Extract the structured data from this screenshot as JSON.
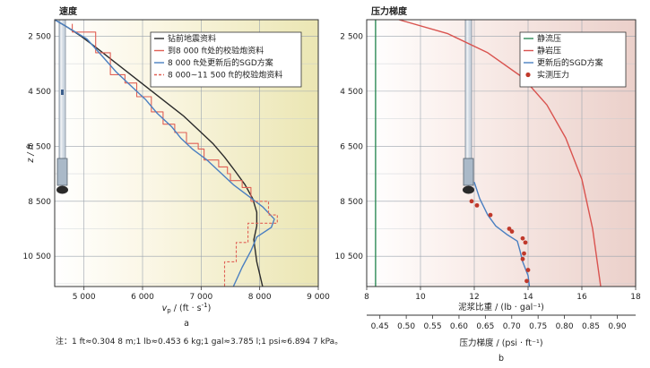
{
  "chart_data": [
    {
      "type": "line",
      "panel_label": "a",
      "title": "速度",
      "xlabel_html": "v_p / (ft · s⁻¹)",
      "xlabel_parts": [
        "v",
        "p",
        " / (ft · s",
        "-1",
        ")"
      ],
      "ylabel": "z / ft",
      "xlim": [
        4500,
        9000
      ],
      "ylim": [
        1900,
        11600
      ],
      "y_inverted": true,
      "xticks": [
        5000,
        6000,
        7000,
        8000,
        9000
      ],
      "xtick_labels": [
        "5 000",
        "6 000",
        "7 000",
        "8 000",
        "9 000"
      ],
      "yticks": [
        2500,
        4500,
        6500,
        8500,
        10500
      ],
      "ytick_labels": [
        "2 500",
        "4 500",
        "6 500",
        "8 500",
        "10 500"
      ],
      "grid": true,
      "legend_position": "top-right",
      "series": [
        {
          "name": "钻前地震资料",
          "color": "#2a2a2a",
          "style": "solid",
          "x": [
            4500,
            4700,
            4950,
            5200,
            5500,
            5800,
            6100,
            6400,
            6700,
            6950,
            7200,
            7400,
            7580,
            7750,
            7880,
            7950,
            7950,
            7900,
            7950,
            8050
          ],
          "y": [
            1900,
            2150,
            2500,
            2900,
            3400,
            3900,
            4400,
            4900,
            5400,
            5900,
            6400,
            6900,
            7400,
            7900,
            8400,
            8900,
            9400,
            9900,
            10700,
            11600
          ]
        },
        {
          "name": "到8 000 ft处的校验炮资料",
          "color": "#e06055",
          "style": "step",
          "x": [
            4800,
            4800,
            5200,
            5200,
            5450,
            5450,
            5700,
            5700,
            5900,
            5900,
            6150,
            6150,
            6350,
            6350,
            6550,
            6550,
            6750,
            6750,
            6950,
            6950,
            7050,
            7050,
            7300,
            7300,
            7450,
            7450,
            7500,
            7500,
            7700,
            7700,
            7850,
            7850
          ],
          "y": [
            2050,
            2350,
            2350,
            3100,
            3100,
            3900,
            3900,
            4200,
            4200,
            4700,
            4700,
            5250,
            5250,
            5700,
            5700,
            6000,
            6000,
            6400,
            6400,
            6600,
            6600,
            7000,
            7000,
            7250,
            7250,
            7500,
            7500,
            7750,
            7750,
            8000,
            8000,
            8500
          ]
        },
        {
          "name": "8 000 ft处更新后的SGD方案",
          "color": "#4a7fc1",
          "style": "solid",
          "x": [
            4500,
            4700,
            5050,
            5300,
            5550,
            5800,
            6050,
            6250,
            6500,
            6650,
            6850,
            7100,
            7350,
            7550,
            7800,
            8050,
            8250,
            8200,
            7950,
            7850,
            7700,
            7550
          ],
          "y": [
            1900,
            2150,
            2600,
            3200,
            3800,
            4300,
            4800,
            5300,
            5800,
            6200,
            6600,
            7000,
            7500,
            7900,
            8300,
            8700,
            9150,
            9450,
            9800,
            10300,
            10900,
            11600
          ]
        },
        {
          "name": "8 000~11 500 ft的校验炮资料",
          "color": "#e06055",
          "style": "dashed-step",
          "x": [
            7850,
            8150,
            8150,
            8300,
            8300,
            7800,
            7800,
            7600,
            7600,
            7400,
            7400
          ],
          "y": [
            8500,
            8500,
            9000,
            9000,
            9300,
            9300,
            10000,
            10000,
            10700,
            10700,
            11600
          ]
        }
      ],
      "annotations": [
        {
          "text": "注：1 ft≈0.304 8 m;1 lb≈0.453 6 kg;1 gal≈3.785 l;1 psi≈6.894 7 kPa。"
        }
      ]
    },
    {
      "type": "scatter",
      "panel_label": "b",
      "title": "压力梯度",
      "xlabel": "泥浆比重 / (lb · gal⁻¹)",
      "xlabel2": "压力梯度 / (psi · ft⁻¹)",
      "ylabel": "",
      "xlim": [
        8,
        18
      ],
      "ylim": [
        1900,
        11600
      ],
      "y_inverted": true,
      "xticks": [
        8,
        10,
        12,
        14,
        16,
        18
      ],
      "xtick_labels": [
        "8",
        "10",
        "12",
        "14",
        "16",
        "18"
      ],
      "x2ticks": [
        0.45,
        0.5,
        0.55,
        0.6,
        0.65,
        0.7,
        0.75,
        0.8,
        0.85,
        0.9
      ],
      "x2tick_labels": [
        "0.45",
        "0.50",
        "0.55",
        "0.60",
        "0.65",
        "0.70",
        "0.75",
        "0.80",
        "0.85",
        "0.90"
      ],
      "yticks": [
        2500,
        4500,
        6500,
        8500,
        10500
      ],
      "ytick_labels": [
        "2 500",
        "4 500",
        "6 500",
        "8 500",
        "10 500"
      ],
      "grid": true,
      "legend_position": "top-right",
      "series": [
        {
          "name": "静流压",
          "color": "#2e8b57",
          "style": "solid",
          "x": [
            8.33,
            8.33
          ],
          "y": [
            1900,
            11600
          ]
        },
        {
          "name": "静岩压",
          "color": "#d9534f",
          "style": "solid",
          "x": [
            9.2,
            11,
            12.5,
            13.8,
            14.7,
            15.4,
            16,
            16.4,
            16.7
          ],
          "y": [
            1900,
            2400,
            3100,
            4000,
            5000,
            6200,
            7700,
            9500,
            11600
          ]
        },
        {
          "name": "更新后的SGD方案",
          "color": "#4a7fc1",
          "style": "solid",
          "x": [
            12,
            12.2,
            12.5,
            12.8,
            13.2,
            13.6,
            13.7,
            13.8,
            14,
            14.05
          ],
          "y": [
            7800,
            8400,
            9000,
            9400,
            9700,
            9950,
            10300,
            10700,
            11200,
            11600
          ]
        },
        {
          "name": "实测压力",
          "color": "#c0392b",
          "style": "markers",
          "x": [
            11.9,
            12.1,
            12.6,
            13.3,
            13.4,
            13.8,
            13.9,
            13.85,
            13.8,
            14,
            13.95
          ],
          "y": [
            8500,
            8650,
            9000,
            9500,
            9600,
            9850,
            10000,
            10400,
            10600,
            11000,
            11400
          ]
        }
      ]
    }
  ]
}
